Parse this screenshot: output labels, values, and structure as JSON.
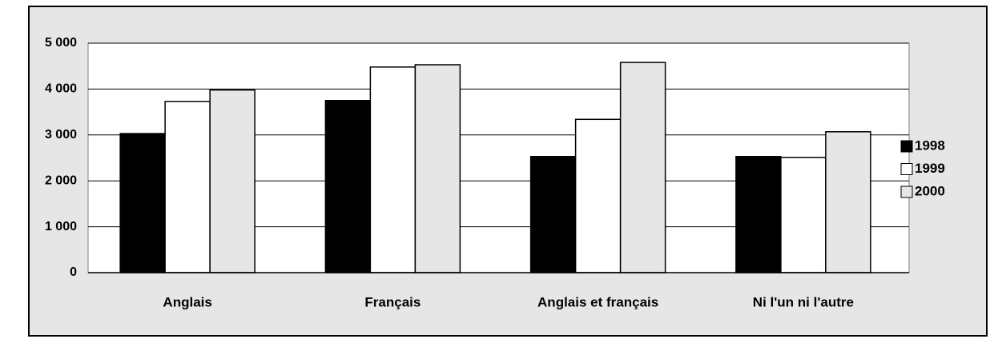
{
  "chart_data": {
    "type": "bar",
    "categories": [
      "Anglais",
      "Français",
      "Anglais et français",
      "Ni l'un ni l'autre"
    ],
    "series": [
      {
        "name": "1998",
        "color": "#000000",
        "values": [
          3030,
          3750,
          2530,
          2530
        ]
      },
      {
        "name": "1999",
        "color": "#ffffff",
        "values": [
          3730,
          4480,
          3340,
          2510
        ]
      },
      {
        "name": "2000",
        "color": "#e6e6e6",
        "values": [
          3980,
          4530,
          4580,
          3070
        ]
      }
    ],
    "ylim": [
      0,
      5000
    ],
    "yticks": [
      0,
      {
        "value": 1000,
        "label": "1 000"
      },
      {
        "value": 2000,
        "label": "2 000"
      },
      {
        "value": 3000,
        "label": "3 000"
      },
      {
        "value": 4000,
        "label": "4 000"
      },
      {
        "value": 5000,
        "label": "5 000"
      }
    ],
    "grid": true,
    "legend": "right"
  }
}
